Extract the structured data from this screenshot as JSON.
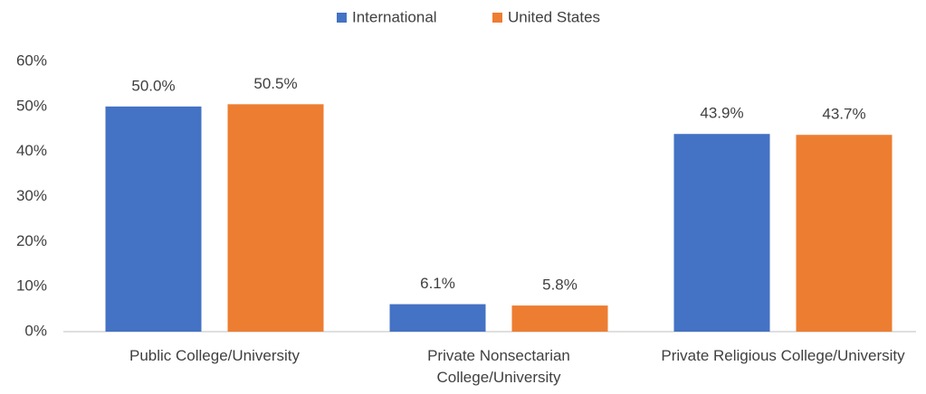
{
  "chart_data": {
    "type": "bar",
    "categories": [
      "Public College/University",
      "Private Nonsectarian College/University",
      "Private Religious College/University"
    ],
    "series": [
      {
        "name": "International",
        "color": "#4472c4",
        "values": [
          50.0,
          6.1,
          43.9
        ],
        "value_labels": [
          "50.0%",
          "6.1%",
          "43.9%"
        ]
      },
      {
        "name": "United States",
        "color": "#ed7d31",
        "values": [
          50.5,
          5.8,
          43.7
        ],
        "value_labels": [
          "50.5%",
          "5.8%",
          "43.7%"
        ]
      }
    ],
    "ylim": [
      0,
      60
    ],
    "yticks": [
      {
        "value": 0,
        "label": "0%"
      },
      {
        "value": 10,
        "label": "10%"
      },
      {
        "value": 20,
        "label": "20%"
      },
      {
        "value": 30,
        "label": "30%"
      },
      {
        "value": 40,
        "label": "40%"
      },
      {
        "value": 50,
        "label": "50%"
      },
      {
        "value": 60,
        "label": "60%"
      }
    ],
    "grid": false,
    "legend": "top"
  }
}
